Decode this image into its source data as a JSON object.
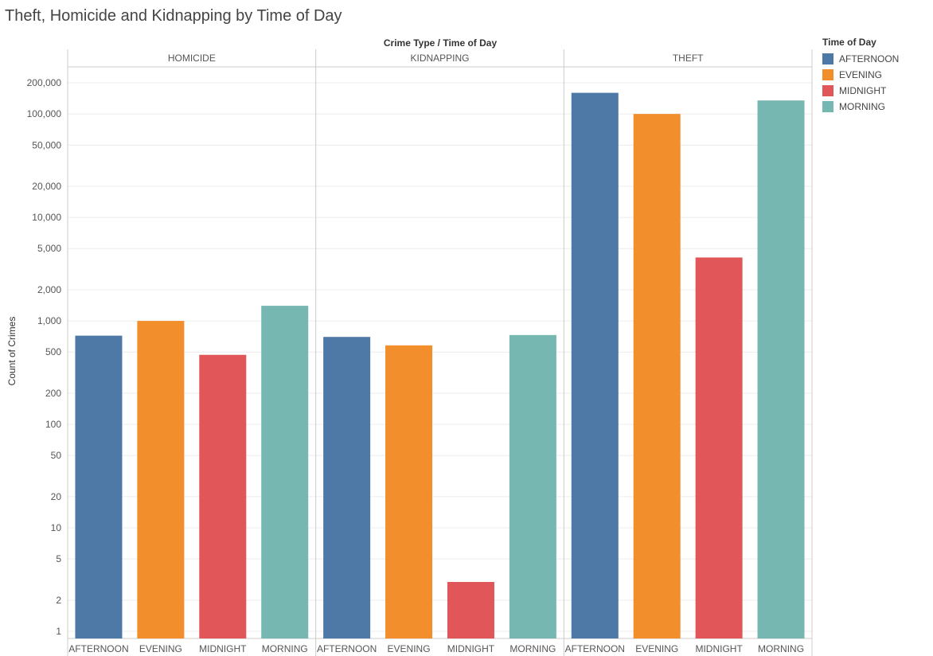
{
  "title": "Theft, Homicide and Kidnapping by Time of Day",
  "chart_data": {
    "type": "bar",
    "header": "Crime Type / Time of Day",
    "ylabel": "Count of Crimes",
    "yscale": "log",
    "ylim": [
      1,
      200000
    ],
    "yticks": [
      1,
      2,
      5,
      10,
      20,
      50,
      100,
      200,
      500,
      1000,
      2000,
      5000,
      10000,
      20000,
      50000,
      100000,
      200000
    ],
    "ytick_labels": [
      "1",
      "2",
      "5",
      "10",
      "20",
      "50",
      "100",
      "200",
      "500",
      "1,000",
      "2,000",
      "5,000",
      "10,000",
      "20,000",
      "50,000",
      "100,000",
      "200,000"
    ],
    "grid": true,
    "legend": {
      "title": "Time of Day",
      "position": "right",
      "entries": [
        {
          "name": "AFTERNOON",
          "color": "#4e79a7"
        },
        {
          "name": "EVENING",
          "color": "#f28e2b"
        },
        {
          "name": "MIDNIGHT",
          "color": "#e15759"
        },
        {
          "name": "MORNING",
          "color": "#76b7b2"
        }
      ]
    },
    "categories": [
      "AFTERNOON",
      "EVENING",
      "MIDNIGHT",
      "MORNING"
    ],
    "panels": [
      {
        "name": "HOMICIDE",
        "values": [
          720,
          1000,
          470,
          1400
        ]
      },
      {
        "name": "KIDNAPPING",
        "values": [
          700,
          580,
          3,
          730
        ]
      },
      {
        "name": "THEFT",
        "values": [
          160000,
          100000,
          4100,
          135000
        ]
      }
    ]
  }
}
